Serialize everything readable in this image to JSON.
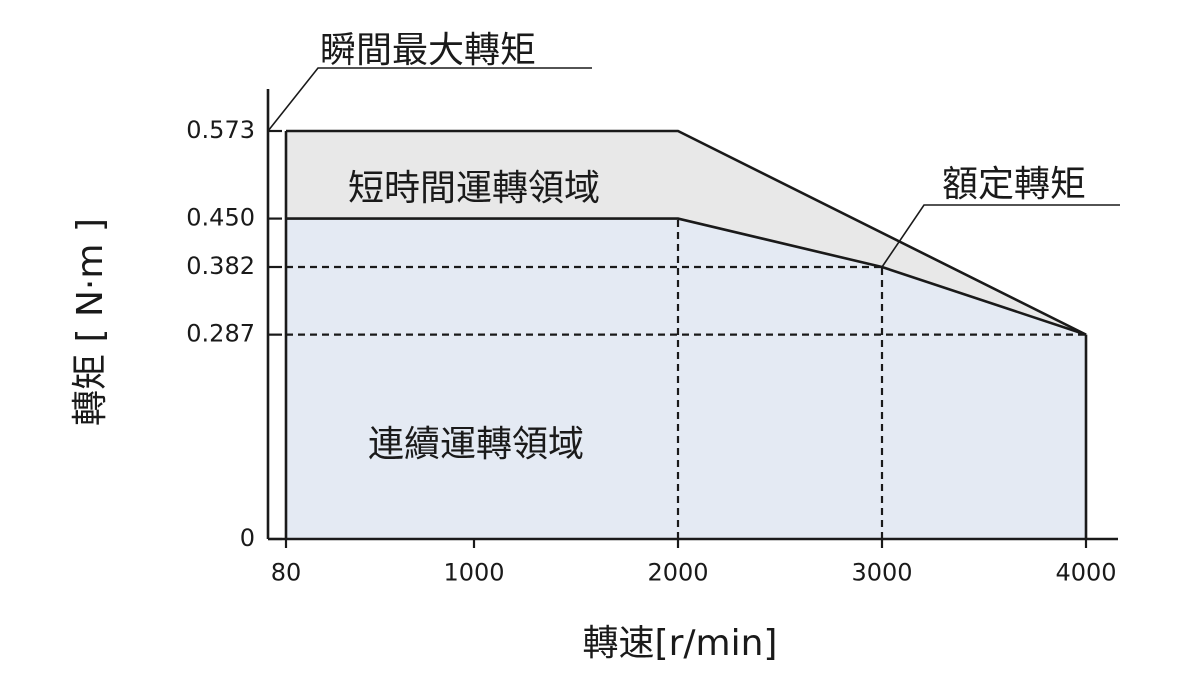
{
  "chart_data": {
    "type": "area",
    "xlabel": "轉速[r/min]",
    "ylabel": "轉矩 [ N·m ]",
    "x_ticks": [
      80,
      1000,
      2000,
      3000,
      4000
    ],
    "y_ticks": [
      0,
      0.287,
      0.382,
      0.45,
      0.573
    ],
    "x_tick_labels": [
      "80",
      "1000",
      "2000",
      "3000",
      "4000"
    ],
    "y_tick_labels": [
      "0",
      "0.287",
      "0.382",
      "0.450",
      "0.573"
    ],
    "xlim": [
      0,
      4150
    ],
    "ylim": [
      0,
      0.573
    ],
    "series": [
      {
        "name": "短時間運轉領域",
        "color": "#e8e8e8",
        "points": [
          [
            80,
            0.573
          ],
          [
            2000,
            0.573
          ],
          [
            4000,
            0.287
          ]
        ]
      },
      {
        "name": "連續運轉領域",
        "color": "#e4eaf3",
        "points": [
          [
            80,
            0.45
          ],
          [
            2000,
            0.45
          ],
          [
            3000,
            0.382
          ],
          [
            4000,
            0.287
          ]
        ]
      }
    ],
    "reference_lines": [
      {
        "from": [
          80,
          0.382
        ],
        "to": [
          3000,
          0.382
        ]
      },
      {
        "from": [
          80,
          0.287
        ],
        "to": [
          4000,
          0.287
        ]
      },
      {
        "from": [
          2000,
          0
        ],
        "to": [
          2000,
          0.45
        ]
      },
      {
        "from": [
          3000,
          0
        ],
        "to": [
          3000,
          0.382
        ]
      }
    ],
    "annotations": [
      {
        "text": "瞬間最大轉矩",
        "points_to": [
          80,
          0.573
        ]
      },
      {
        "text": "額定轉矩",
        "points_to": [
          3000,
          0.382
        ]
      }
    ],
    "grid": false
  }
}
